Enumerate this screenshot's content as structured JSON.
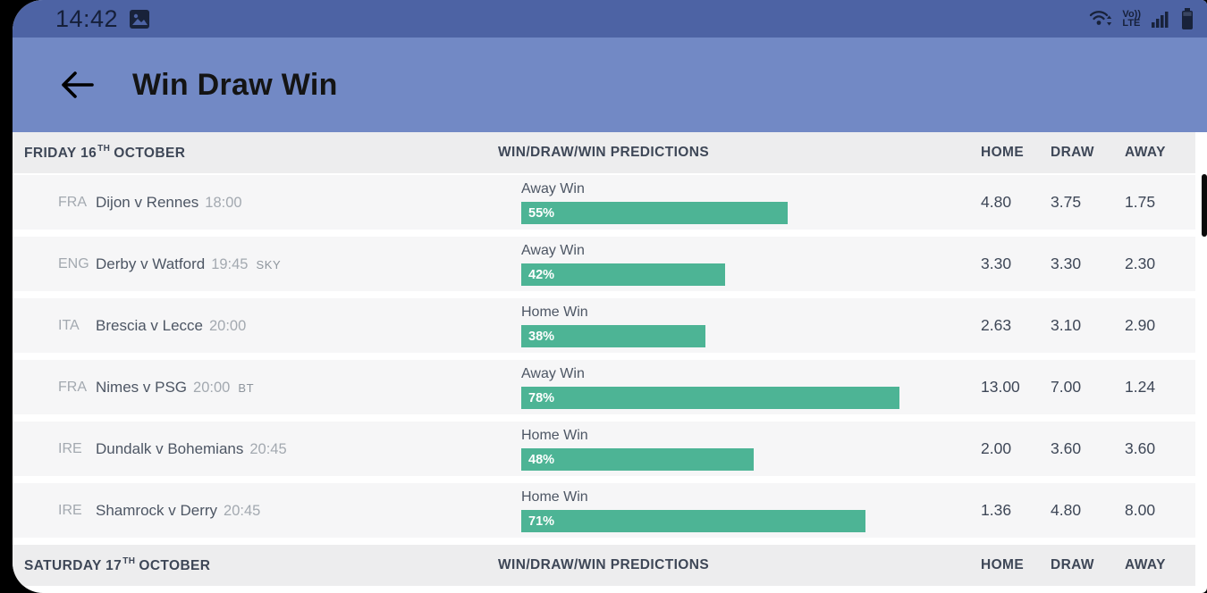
{
  "theme": {
    "statusbar-bg": "#4d63a4",
    "header-bg": "#7289c5",
    "bar-fill": "#4db495",
    "section-bg": "#ededee",
    "row-bg": "#f6f6f7"
  },
  "status_bar": {
    "time": "14:42",
    "volte": {
      "line1": "Vo))",
      "line2": "LTE"
    }
  },
  "header": {
    "title": "Win Draw Win"
  },
  "columns": {
    "predictions": "WIN/DRAW/WIN PREDICTIONS",
    "home": "HOME",
    "draw": "DRAW",
    "away": "AWAY"
  },
  "sections": [
    {
      "date": {
        "main": "FRIDAY 16",
        "ordinal": "TH",
        "month": "OCTOBER"
      },
      "rows": [
        {
          "league": "FRA",
          "match": "Dijon v Rennes",
          "time": "18:00",
          "tv": "",
          "prediction": "Away Win",
          "percent": 55,
          "percent_label": "55%",
          "home": "4.80",
          "draw": "3.75",
          "away": "1.75"
        },
        {
          "league": "ENG",
          "match": "Derby v Watford",
          "time": "19:45",
          "tv": "SKY",
          "prediction": "Away Win",
          "percent": 42,
          "percent_label": "42%",
          "home": "3.30",
          "draw": "3.30",
          "away": "2.30"
        },
        {
          "league": "ITA",
          "match": "Brescia v Lecce",
          "time": "20:00",
          "tv": "",
          "prediction": "Home Win",
          "percent": 38,
          "percent_label": "38%",
          "home": "2.63",
          "draw": "3.10",
          "away": "2.90"
        },
        {
          "league": "FRA",
          "match": "Nimes v PSG",
          "time": "20:00",
          "tv": "BT",
          "prediction": "Away Win",
          "percent": 78,
          "percent_label": "78%",
          "home": "13.00",
          "draw": "7.00",
          "away": "1.24"
        },
        {
          "league": "IRE",
          "match": "Dundalk v Bohemians",
          "time": "20:45",
          "tv": "",
          "prediction": "Home Win",
          "percent": 48,
          "percent_label": "48%",
          "home": "2.00",
          "draw": "3.60",
          "away": "3.60"
        },
        {
          "league": "IRE",
          "match": "Shamrock v Derry",
          "time": "20:45",
          "tv": "",
          "prediction": "Home Win",
          "percent": 71,
          "percent_label": "71%",
          "home": "1.36",
          "draw": "4.80",
          "away": "8.00"
        }
      ]
    },
    {
      "date": {
        "main": "SATURDAY 17",
        "ordinal": "TH",
        "month": "OCTOBER"
      },
      "rows": []
    }
  ]
}
